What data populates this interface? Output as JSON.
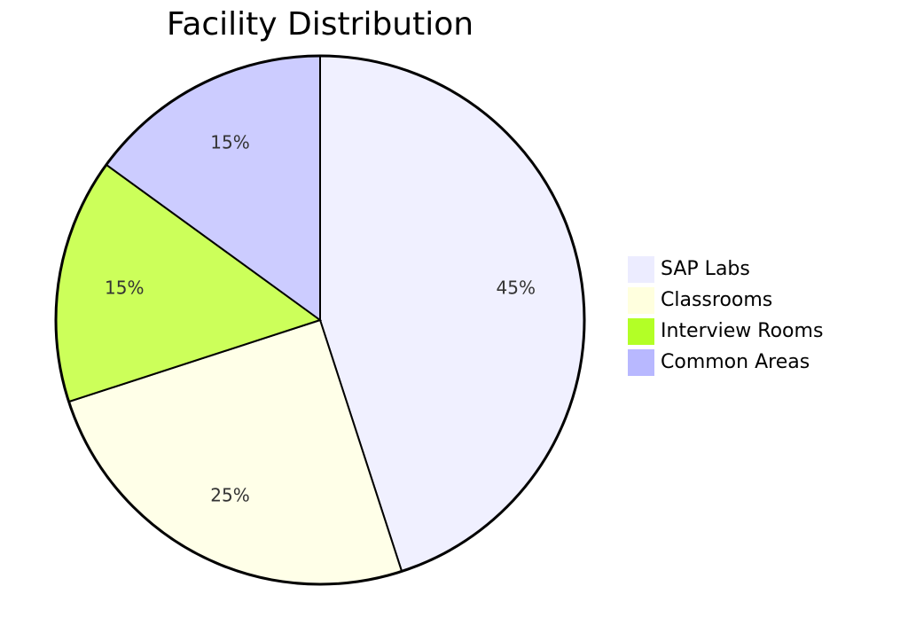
{
  "chart_data": {
    "type": "pie",
    "title": "Facility Distribution",
    "categories": [
      "SAP Labs",
      "Classrooms",
      "Interview Rooms",
      "Common Areas"
    ],
    "values": [
      45,
      25,
      15,
      15
    ],
    "labels": [
      "45%",
      "25%",
      "15%",
      "15%"
    ],
    "colors": [
      "#f0f0ff",
      "#ffffe8",
      "#ccff5a",
      "#ccccff"
    ],
    "legend_colors": [
      "#ececff",
      "#ffffde",
      "#b3ff26",
      "#b8b8ff"
    ],
    "legend_position": "right",
    "start_angle_deg": -90,
    "direction": "clockwise"
  }
}
